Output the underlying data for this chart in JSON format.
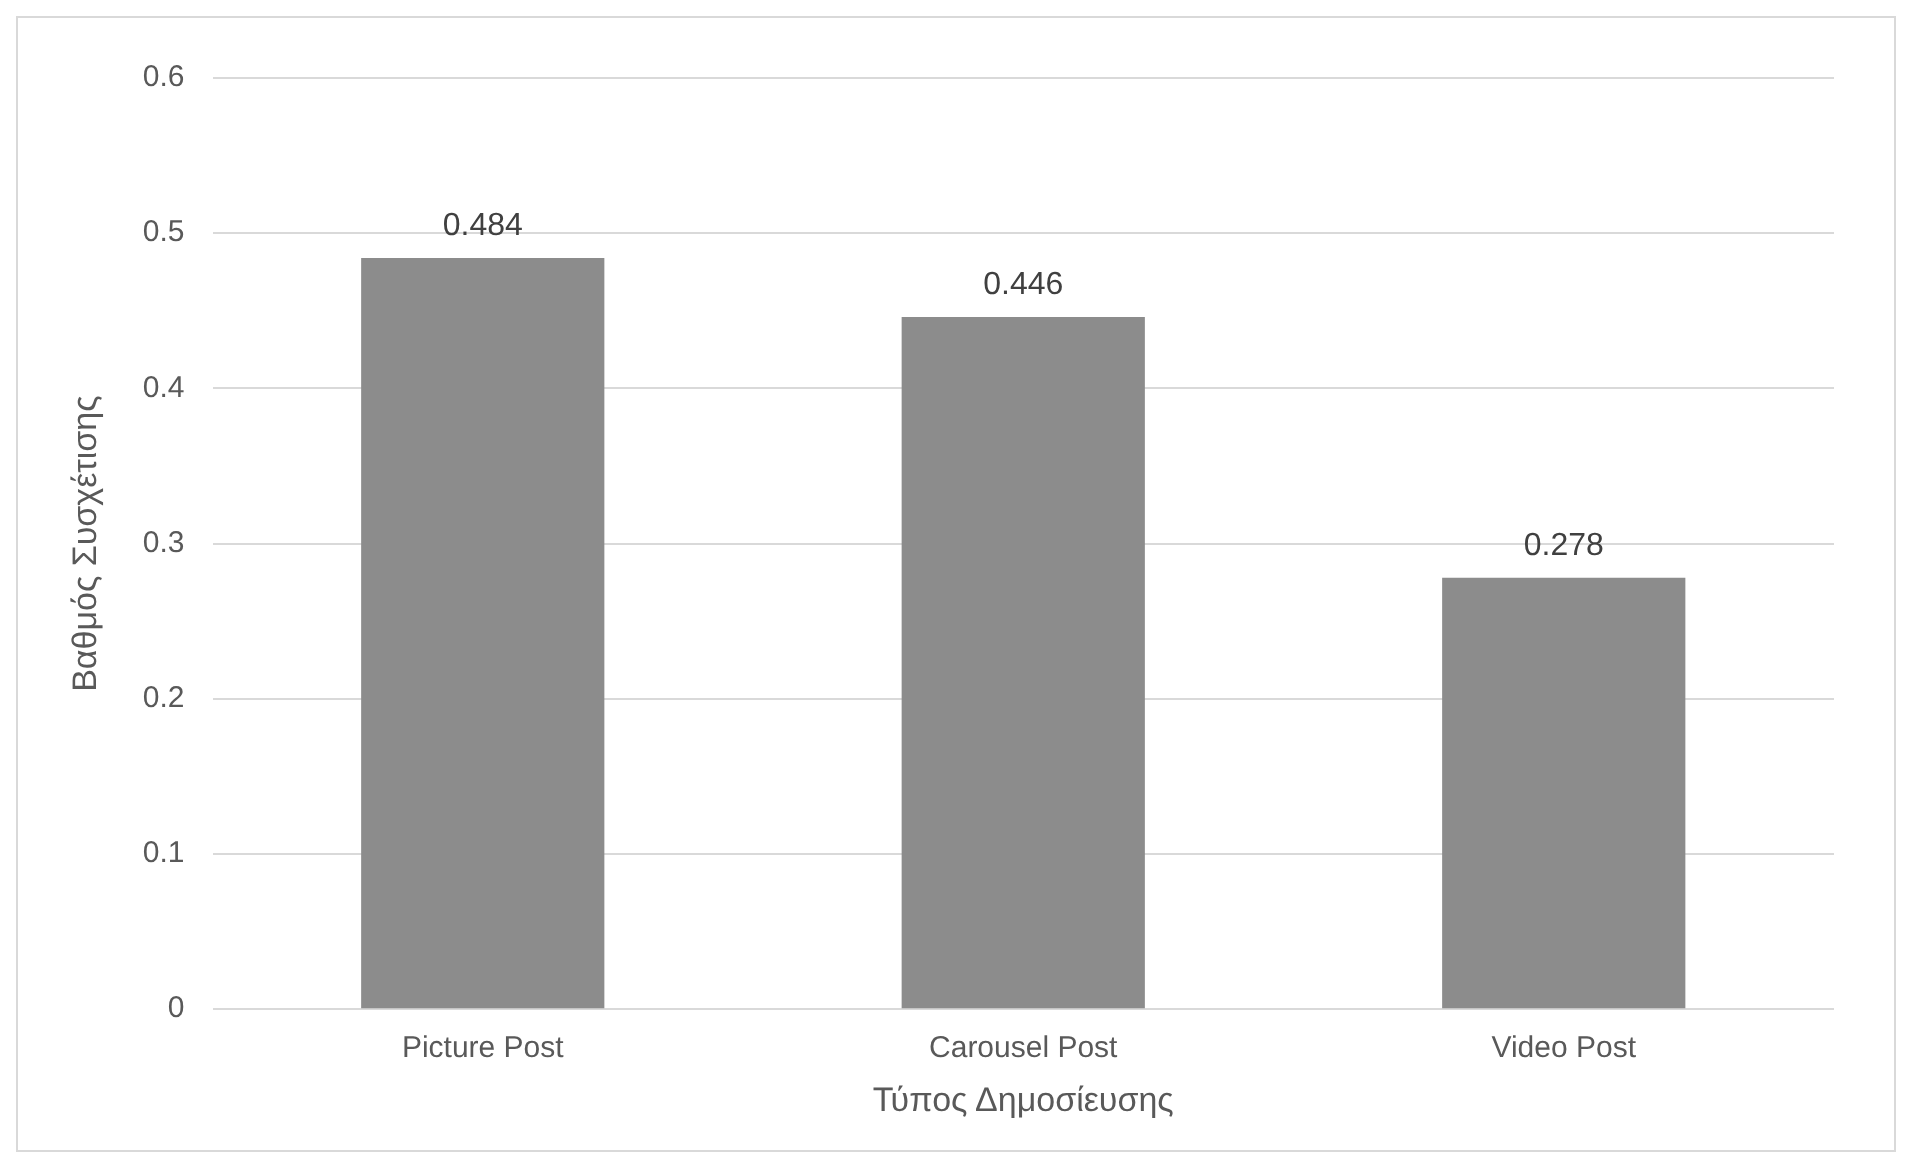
{
  "chart_data": {
    "type": "bar",
    "xlabel": "Τύπος Δημοσίευσης",
    "ylabel": "Βαθμός Συσχέτισης",
    "categories": [
      "Picture Post",
      "Carousel Post",
      "Video Post"
    ],
    "values": [
      0.484,
      0.446,
      0.278
    ],
    "color": "#8c8c8c",
    "ylim": [
      0,
      0.6
    ],
    "yticks": [
      0,
      0.1,
      0.2,
      0.3,
      0.4,
      0.5,
      0.6
    ],
    "grid": "y",
    "legend": false,
    "data_labels": true
  }
}
